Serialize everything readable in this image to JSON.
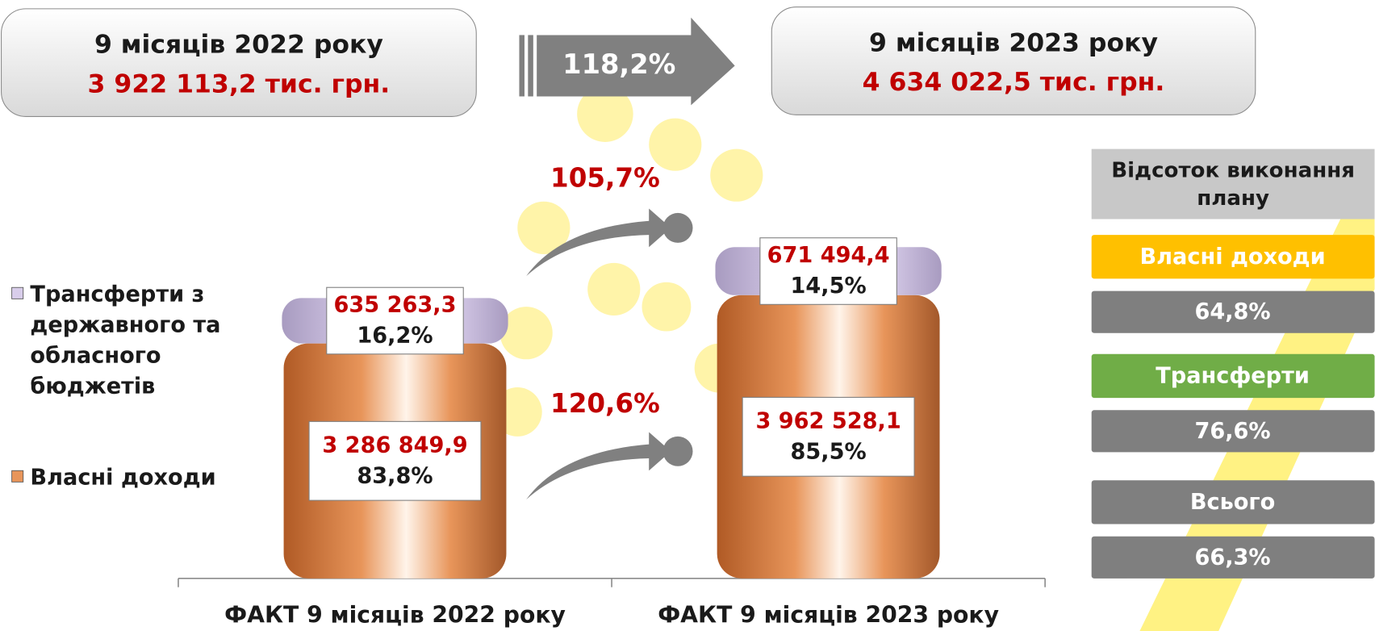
{
  "top": {
    "left": {
      "period": "9 місяців  2022 року",
      "amount": "3 922 113,2 тис. грн."
    },
    "growth": "118,2%",
    "right": {
      "period": "9 місяців  2023 року",
      "amount": "4 634 022,5 тис. грн."
    }
  },
  "chart_data": {
    "type": "bar",
    "stacked": true,
    "categories": [
      "ФАКТ 9 місяців 2022 року",
      "ФАКТ 9 місяців 2023 року"
    ],
    "series": [
      {
        "name": "Власні доходи",
        "color": "#e8955a",
        "values": [
          3286849.9,
          3962528.1
        ],
        "value_labels": [
          "3 286 849,9",
          "3 962 528,1"
        ],
        "share_labels": [
          "83,8%",
          "85,5%"
        ],
        "growth_label": "120,6%"
      },
      {
        "name": "Трансферти з державного та обласного бюджетів",
        "color": "#d8cdea",
        "values": [
          635263.3,
          671494.4
        ],
        "value_labels": [
          "635 263,3",
          "671 494,4"
        ],
        "share_labels": [
          "16,2%",
          "14,5%"
        ],
        "growth_label": "105,7%"
      }
    ]
  },
  "plan_panel": {
    "title": "Відсоток виконання плану",
    "items": [
      {
        "label": "Власні доходи",
        "value": "64,8%",
        "color": "#ffc000"
      },
      {
        "label": "Трансферти",
        "value": "76,6%",
        "color": "#70ad47"
      },
      {
        "label": "Всього",
        "value": "66,3%",
        "color": "#7f7f7f"
      }
    ]
  }
}
